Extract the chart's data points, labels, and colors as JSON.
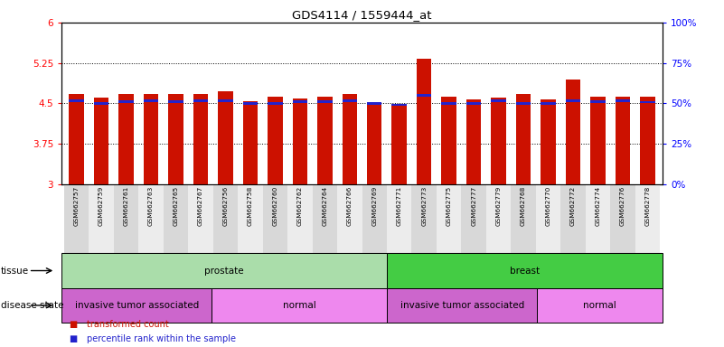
{
  "title": "GDS4114 / 1559444_at",
  "samples": [
    "GSM662757",
    "GSM662759",
    "GSM662761",
    "GSM662763",
    "GSM662765",
    "GSM662767",
    "GSM662756",
    "GSM662758",
    "GSM662760",
    "GSM662762",
    "GSM662764",
    "GSM662766",
    "GSM662769",
    "GSM662771",
    "GSM662773",
    "GSM662775",
    "GSM662777",
    "GSM662779",
    "GSM662768",
    "GSM662770",
    "GSM662772",
    "GSM662774",
    "GSM662776",
    "GSM662778"
  ],
  "red_values": [
    4.68,
    4.6,
    4.67,
    4.67,
    4.67,
    4.67,
    4.72,
    4.53,
    4.63,
    4.58,
    4.63,
    4.68,
    4.52,
    4.47,
    5.32,
    4.63,
    4.57,
    4.6,
    4.67,
    4.57,
    4.94,
    4.63,
    4.63,
    4.63
  ],
  "blue_values": [
    4.55,
    4.5,
    4.53,
    4.55,
    4.53,
    4.55,
    4.55,
    4.5,
    4.5,
    4.53,
    4.53,
    4.55,
    4.5,
    4.47,
    4.65,
    4.5,
    4.5,
    4.55,
    4.5,
    4.5,
    4.55,
    4.53,
    4.55,
    4.52
  ],
  "ylim_left": [
    3,
    6
  ],
  "ylim_right": [
    0,
    100
  ],
  "yticks_left": [
    3,
    3.75,
    4.5,
    5.25,
    6
  ],
  "yticks_right": [
    0,
    25,
    50,
    75,
    100
  ],
  "ytick_labels_left": [
    "3",
    "3.75",
    "4.5",
    "5.25",
    "6"
  ],
  "ytick_labels_right": [
    "0%",
    "25%",
    "50%",
    "75%",
    "100%"
  ],
  "gridlines": [
    3.75,
    4.5,
    5.25
  ],
  "tissue_groups": [
    {
      "label": "prostate",
      "start": 0,
      "end": 13,
      "color": "#aaddaa"
    },
    {
      "label": "breast",
      "start": 13,
      "end": 24,
      "color": "#44cc44"
    }
  ],
  "disease_groups": [
    {
      "label": "invasive tumor associated",
      "start": 0,
      "end": 6,
      "color": "#cc66cc"
    },
    {
      "label": "normal",
      "start": 6,
      "end": 13,
      "color": "#ee88ee"
    },
    {
      "label": "invasive tumor associated",
      "start": 13,
      "end": 19,
      "color": "#cc66cc"
    },
    {
      "label": "normal",
      "start": 19,
      "end": 24,
      "color": "#ee88ee"
    }
  ],
  "bar_color": "#cc1100",
  "blue_color": "#2222cc",
  "legend_items": [
    {
      "label": "transformed count",
      "color": "#cc1100"
    },
    {
      "label": "percentile rank within the sample",
      "color": "#2222cc"
    }
  ]
}
